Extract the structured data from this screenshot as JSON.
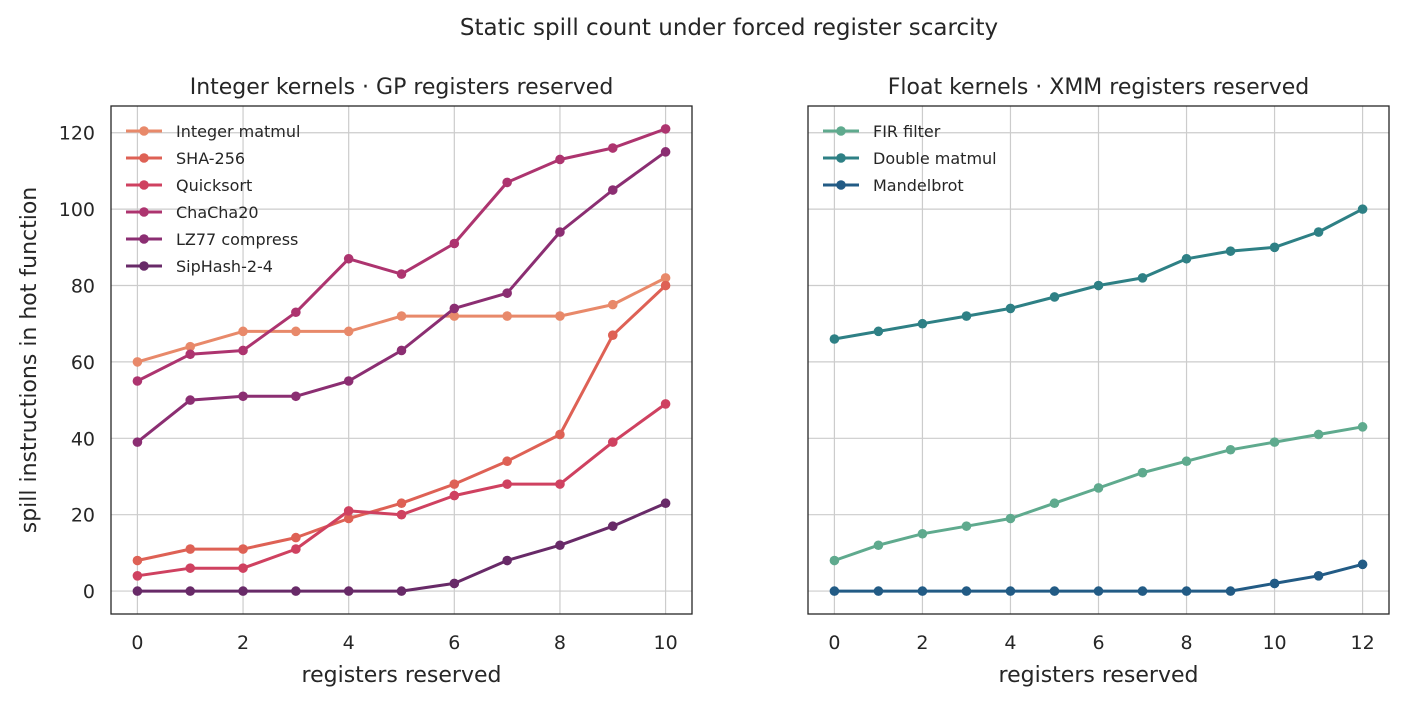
{
  "figure_title": "Static spill count under forced register scarcity",
  "chart_data": [
    {
      "type": "line",
      "title": "Integer kernels · GP registers reserved",
      "xlabel": "registers reserved",
      "ylabel": "spill instructions in hot function",
      "xlim": [
        -0.5,
        10.5
      ],
      "ylim": [
        -6,
        127
      ],
      "xticks": [
        0,
        2,
        4,
        6,
        8,
        10
      ],
      "yticks": [
        0,
        20,
        40,
        60,
        80,
        100,
        120
      ],
      "grid": true,
      "legend_position": "upper-left",
      "x": [
        0,
        1,
        2,
        3,
        4,
        5,
        6,
        7,
        8,
        9,
        10
      ],
      "series": [
        {
          "name": "Integer matmul",
          "color": "#e8896a",
          "values": [
            60,
            64,
            68,
            68,
            68,
            72,
            72,
            72,
            72,
            75,
            82
          ]
        },
        {
          "name": "SHA-256",
          "color": "#de6155",
          "values": [
            8,
            11,
            11,
            14,
            19,
            23,
            28,
            34,
            41,
            67,
            80
          ]
        },
        {
          "name": "Quicksort",
          "color": "#cf4160",
          "values": [
            4,
            6,
            6,
            11,
            21,
            20,
            25,
            28,
            28,
            39,
            49
          ]
        },
        {
          "name": "ChaCha20",
          "color": "#ad346f",
          "values": [
            55,
            62,
            63,
            73,
            87,
            83,
            91,
            107,
            113,
            116,
            121
          ]
        },
        {
          "name": "LZ77 compress",
          "color": "#8b2e72",
          "values": [
            39,
            50,
            51,
            51,
            55,
            63,
            74,
            78,
            94,
            105,
            115
          ]
        },
        {
          "name": "SipHash-2-4",
          "color": "#682a68",
          "values": [
            0,
            0,
            0,
            0,
            0,
            0,
            2,
            8,
            12,
            17,
            23
          ]
        }
      ]
    },
    {
      "type": "line",
      "title": "Float kernels · XMM registers reserved",
      "xlabel": "registers reserved",
      "ylabel": "",
      "xlim": [
        -0.6,
        12.6
      ],
      "ylim": [
        -6,
        127
      ],
      "xticks": [
        0,
        2,
        4,
        6,
        8,
        10,
        12
      ],
      "yticks": [
        0,
        20,
        40,
        60,
        80,
        100,
        120
      ],
      "shared_y": true,
      "grid": true,
      "legend_position": "upper-left",
      "x": [
        0,
        1,
        2,
        3,
        4,
        5,
        6,
        7,
        8,
        9,
        10,
        11,
        12
      ],
      "series": [
        {
          "name": "FIR filter",
          "color": "#5faa8e",
          "values": [
            8,
            12,
            15,
            17,
            19,
            23,
            27,
            31,
            34,
            37,
            39,
            41,
            43
          ]
        },
        {
          "name": "Double matmul",
          "color": "#2e8085",
          "values": [
            66,
            68,
            70,
            72,
            74,
            77,
            80,
            82,
            87,
            89,
            90,
            94,
            100
          ]
        },
        {
          "name": "Mandelbrot",
          "color": "#225b85",
          "values": [
            0,
            0,
            0,
            0,
            0,
            0,
            0,
            0,
            0,
            0,
            2,
            4,
            7
          ]
        }
      ]
    }
  ]
}
